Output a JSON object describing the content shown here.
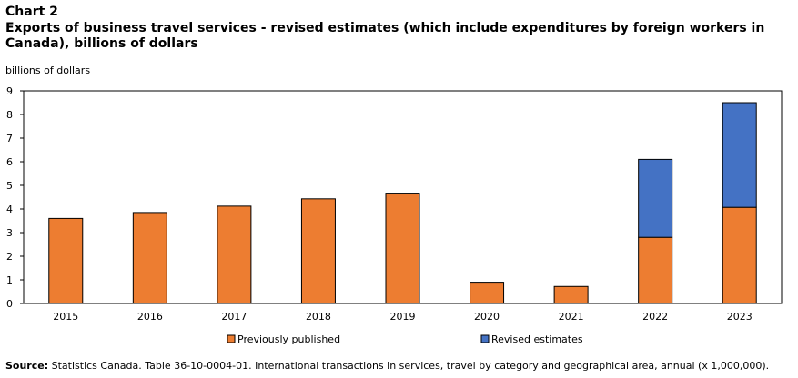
{
  "header": {
    "chart_label": "Chart 2",
    "title": "Exports of business travel services - revised estimates (which include  expenditures by foreign workers in Canada), billions  of dollars"
  },
  "footer": {
    "source_label": "Source:",
    "source_text": " Statistics Canada. Table 36-10-0004-01. International transactions in services, travel by category and geographical area, annual (x 1,000,000)."
  },
  "colors": {
    "previously_published": "#ed7d31",
    "revised_estimates": "#4472c4"
  },
  "chart_data": {
    "type": "bar",
    "stacked": true,
    "title": "Exports of business travel services - revised estimates (which include  expenditures by foreign workers in Canada), billions  of dollars",
    "xlabel": "",
    "ylabel": "billions of dollars",
    "ylim": [
      0,
      9
    ],
    "yticks": [
      0,
      1,
      2,
      3,
      4,
      5,
      6,
      7,
      8,
      9
    ],
    "grid": false,
    "legend_position": "bottom",
    "categories": [
      "2015",
      "2016",
      "2017",
      "2018",
      "2019",
      "2020",
      "2021",
      "2022",
      "2023"
    ],
    "series": [
      {
        "name": "Previously published",
        "values": [
          3.6,
          3.85,
          4.12,
          4.43,
          4.67,
          0.9,
          0.72,
          2.8,
          4.07
        ]
      },
      {
        "name": "Revised estimates",
        "values": [
          0,
          0,
          0,
          0,
          0,
          0,
          0,
          3.3,
          4.43
        ]
      }
    ]
  }
}
